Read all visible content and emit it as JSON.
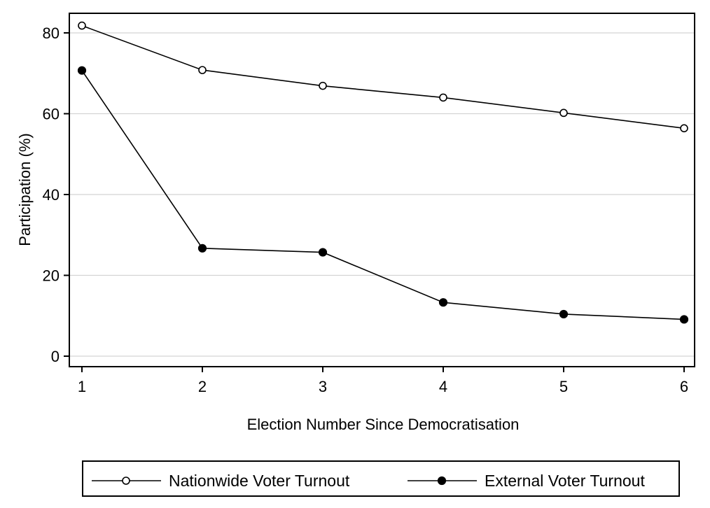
{
  "chart_data": {
    "type": "line",
    "xlabel": "Election Number Since Democratisation",
    "ylabel": "Participation (%)",
    "x": [
      1,
      2,
      3,
      4,
      5,
      6
    ],
    "xlim": [
      1,
      6
    ],
    "ylim": [
      0,
      80
    ],
    "xticks": [
      "1",
      "2",
      "3",
      "4",
      "5",
      "6"
    ],
    "yticks": [
      "0",
      "20",
      "40",
      "60",
      "80"
    ],
    "grid": true,
    "legend_position": "bottom",
    "series": [
      {
        "name": "Nationwide Voter Turnout",
        "values": [
          81.8,
          70.8,
          66.9,
          64.0,
          60.2,
          56.4
        ],
        "marker": "hollow-circle",
        "color": "#000000"
      },
      {
        "name": "External Voter Turnout",
        "values": [
          70.7,
          26.7,
          25.7,
          13.3,
          10.4,
          9.1
        ],
        "marker": "filled-circle",
        "color": "#000000"
      }
    ]
  }
}
